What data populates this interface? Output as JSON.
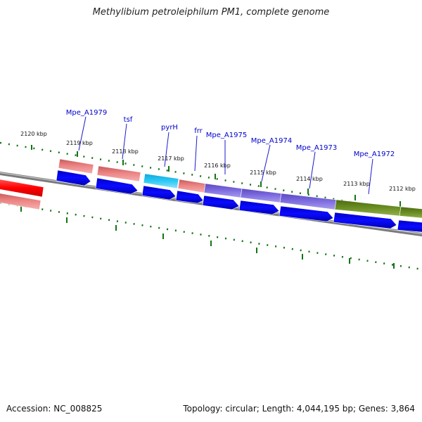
{
  "title": "Methylibium petroleiphilum PM1, complete genome",
  "footer": {
    "accession": "Accession: NC_008825",
    "stats": "Topology: circular; Length: 4,044,195 bp; Genes: 3,864"
  },
  "colors": {
    "backbone": "#7f7f7f",
    "tick": "#137413",
    "cds": "#0000ee",
    "gene_label": "#0000cc",
    "red": "#ff0000",
    "salmon": "#e57373",
    "cyan": "#1ec3f0",
    "purple": "#7b68d8",
    "olive": "#6b8e23"
  },
  "kbp_labels": [
    "2120 kbp",
    "2119 kbp",
    "2118 kbp",
    "2117 kbp",
    "2116 kbp",
    "2115 kbp",
    "2114 kbp",
    "2113 kbp",
    "2112 kbp"
  ],
  "gene_labels": [
    "Mpe_A1979",
    "tsf",
    "pyrH",
    "frr",
    "Mpe_A1975",
    "Mpe_A1974",
    "Mpe_A1973",
    "Mpe_A1972"
  ]
}
